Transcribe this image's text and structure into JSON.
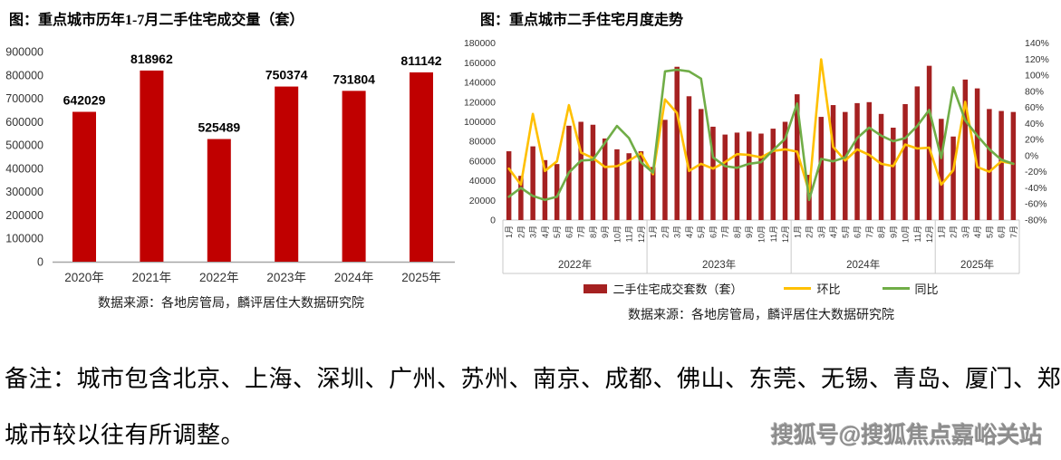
{
  "note": {
    "line1": "备注：城市包含北京、上海、深圳、广州、苏州、南京、成都、佛山、东莞、无锡、青岛、厦门、郑州，",
    "line2": "城市较以往有所调整。"
  },
  "watermark": {
    "text": "搜狐号@搜狐焦点嘉峪关站"
  },
  "colors": {
    "annual_bar": "#C00000",
    "monthly_bar": "#A52121",
    "mom_line": "#FFC000",
    "yoy_line": "#70AD47",
    "axis_line": "#A6A6A6",
    "box_line": "#C9C9C9",
    "label_text": "#333333"
  },
  "chart_data": [
    {
      "id": "annual-volume",
      "type": "bar",
      "title": "图：重点城市历年1-7月二手住宅成交量（套）",
      "categories": [
        "2020年",
        "2021年",
        "2022年",
        "2023年",
        "2024年",
        "2025年"
      ],
      "values": [
        642029,
        818962,
        525489,
        750374,
        731804,
        811142
      ],
      "ylim": [
        0,
        900000
      ],
      "ytick_step": 100000,
      "grid": false,
      "bar_color": "#C00000",
      "source": "数据来源：各地房管局，麟评居住大数据研究院"
    },
    {
      "id": "monthly-trend",
      "type": "bar+line",
      "title": "图：重点城市二手住宅月度走势",
      "year_groups": [
        {
          "label": "2022年",
          "months": 12
        },
        {
          "label": "2023年",
          "months": 12
        },
        {
          "label": "2024年",
          "months": 12
        },
        {
          "label": "2025年",
          "months": 7
        }
      ],
      "month_labels": [
        "1月",
        "2月",
        "3月",
        "4月",
        "5月",
        "6月",
        "7月",
        "8月",
        "9月",
        "10月",
        "11月",
        "12月",
        "1月",
        "2月",
        "3月",
        "4月",
        "5月",
        "6月",
        "7月",
        "8月",
        "9月",
        "10月",
        "11月",
        "12月",
        "1月",
        "2月",
        "3月",
        "4月",
        "5月",
        "6月",
        "7月",
        "8月",
        "9月",
        "10月",
        "11月",
        "12月",
        "1月",
        "2月",
        "3月",
        "4月",
        "5月",
        "6月",
        "7月"
      ],
      "left_ylim": [
        0,
        180000
      ],
      "left_ytick_step": 20000,
      "right_ylim": [
        -80,
        140
      ],
      "right_ytick_step": 20,
      "right_unit": "%",
      "legend_position": "bottom",
      "series": [
        {
          "name": "二手住宅成交套数（套）",
          "type": "bar",
          "axis": "left",
          "color": "#A52121",
          "values": [
            70000,
            45000,
            75000,
            61000,
            57000,
            96000,
            100000,
            97000,
            83000,
            72000,
            68000,
            70000,
            54000,
            102000,
            156000,
            126000,
            113000,
            95000,
            87000,
            89000,
            90000,
            88000,
            93000,
            100000,
            128000,
            46000,
            105000,
            117000,
            110000,
            119000,
            120000,
            108000,
            94000,
            118000,
            136000,
            157000,
            103000,
            85000,
            143000,
            134000,
            113000,
            111000,
            110000
          ]
        },
        {
          "name": "环比",
          "type": "line",
          "axis": "right",
          "color": "#FFC000",
          "values": [
            -16,
            -36,
            52,
            -19,
            -7,
            63,
            4,
            -3,
            -14,
            -13,
            -6,
            3,
            -23,
            70,
            53,
            -19,
            -10,
            -16,
            -8,
            2,
            1,
            -2,
            6,
            8,
            5,
            -45,
            120,
            11,
            -6,
            8,
            1,
            -10,
            -13,
            14,
            9,
            10,
            -36,
            -18,
            67,
            -14,
            -20,
            -7,
            -10
          ]
        },
        {
          "name": "同比",
          "type": "line",
          "axis": "right",
          "color": "#70AD47",
          "values": [
            -51,
            -40,
            -50,
            -55,
            -51,
            -21,
            -6,
            -5,
            16,
            37,
            22,
            -8,
            -21,
            105,
            107,
            105,
            96,
            -2,
            -13,
            -15,
            -10,
            -8,
            7,
            21,
            65,
            -55,
            -4,
            -7,
            -2,
            22,
            35,
            25,
            18,
            22,
            37,
            57,
            -3,
            85,
            44,
            25,
            8,
            -5,
            -10
          ]
        }
      ],
      "source": "数据来源：各地房管局，麟评居住大数据研究院"
    }
  ]
}
